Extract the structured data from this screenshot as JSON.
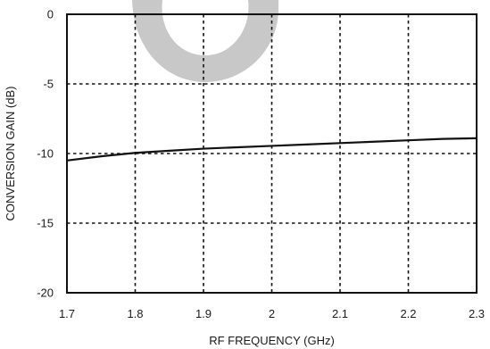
{
  "chart_data": {
    "type": "line",
    "title": "",
    "xlabel": "RF FREQUENCY (GHz)",
    "ylabel": "CONVERSION GAIN (dB)",
    "xlim": [
      1.7,
      2.3
    ],
    "ylim": [
      -20,
      0
    ],
    "x_ticks": [
      1.7,
      1.8,
      1.9,
      2.0,
      2.1,
      2.2,
      2.3
    ],
    "x_tick_labels": [
      "1.7",
      "1.8",
      "1.9",
      "2",
      "2.1",
      "2.2",
      "2.3"
    ],
    "y_ticks": [
      0,
      -5,
      -10,
      -15,
      -20
    ],
    "y_tick_labels": [
      "0",
      "-5",
      "-10",
      "-15",
      "-20"
    ],
    "grid": true,
    "legend": "none",
    "series": [
      {
        "color": "#111111",
        "x": [
          1.7,
          1.75,
          1.8,
          1.85,
          1.9,
          1.95,
          2.0,
          2.05,
          2.1,
          2.15,
          2.2,
          2.25,
          2.3
        ],
        "y": [
          -10.5,
          -10.2,
          -9.95,
          -9.8,
          -9.65,
          -9.55,
          -9.45,
          -9.35,
          -9.25,
          -9.15,
          -9.05,
          -8.95,
          -8.9
        ]
      }
    ],
    "watermark_color": "#c8c8c8"
  }
}
